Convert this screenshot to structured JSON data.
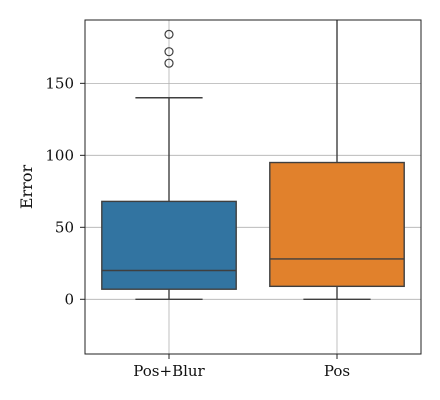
{
  "chart_data": {
    "type": "box",
    "title": "",
    "xlabel": "",
    "ylabel": "Error",
    "ylim": [
      -38,
      194
    ],
    "yticks": [
      0,
      50,
      100,
      150
    ],
    "grid": true,
    "categories": [
      "Pos+Blur",
      "Pos"
    ],
    "boxes": [
      {
        "category": "Pos+Blur",
        "color": "#3274a1",
        "whisker_low": 0,
        "q1": 7,
        "median": 20,
        "q3": 68,
        "whisker_high": 140,
        "outliers": [
          164,
          172,
          184
        ]
      },
      {
        "category": "Pos",
        "color": "#e1812c",
        "whisker_low": 0,
        "q1": 9,
        "median": 28,
        "q3": 95,
        "whisker_high": 194,
        "outliers": []
      }
    ]
  }
}
